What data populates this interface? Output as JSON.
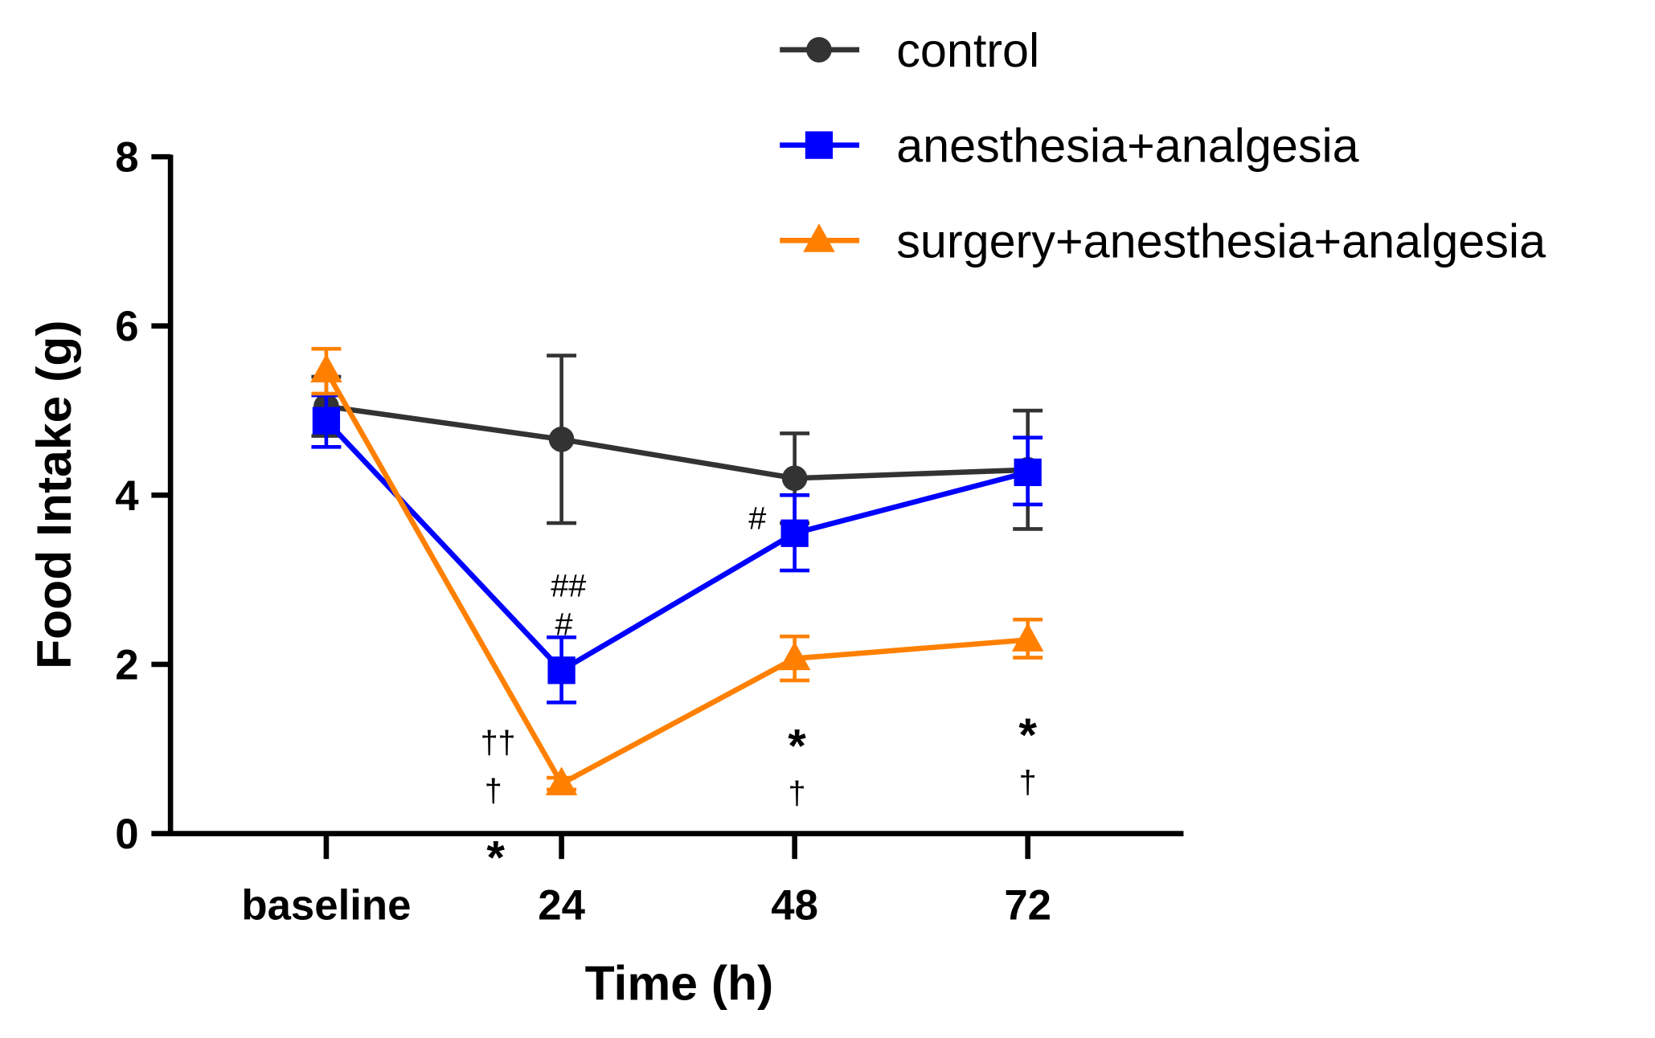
{
  "chart_data": {
    "type": "line",
    "title": "",
    "xlabel": "Time (h)",
    "ylabel": "Food Intake (g)",
    "categories": [
      "baseline",
      "24",
      "48",
      "72"
    ],
    "ylim": [
      0,
      8
    ],
    "yticks": [
      "0",
      "2",
      "4",
      "6",
      "8"
    ],
    "grid": false,
    "legend_position": "top-right",
    "series": [
      {
        "name": "control",
        "color": "#333333",
        "marker": "circle",
        "values": [
          5.05,
          4.66,
          4.2,
          4.3
        ],
        "err_upper": [
          5.4,
          5.65,
          4.73,
          5.0
        ],
        "err_lower": [
          4.7,
          3.67,
          3.67,
          3.6
        ]
      },
      {
        "name": "anesthesia+analgesia",
        "color": "#0000ff",
        "marker": "square",
        "values": [
          4.88,
          1.93,
          3.55,
          4.27
        ],
        "err_upper": [
          5.18,
          2.32,
          4.0,
          4.68
        ],
        "err_lower": [
          4.57,
          1.55,
          3.11,
          3.89
        ]
      },
      {
        "name": "surgery+anesthesia+analgesia",
        "color": "#ff8000",
        "marker": "triangle",
        "values": [
          5.47,
          0.59,
          2.07,
          2.29
        ],
        "err_upper": [
          5.73,
          0.66,
          2.33,
          2.53
        ],
        "err_lower": [
          5.2,
          0.52,
          1.81,
          2.08
        ]
      }
    ],
    "annotations": [
      {
        "text": "##",
        "x": 1.03,
        "y": 2.95,
        "style": "small"
      },
      {
        "text": "#",
        "x": 1.01,
        "y": 2.55,
        "style": "small"
      },
      {
        "text": "#",
        "x": 1.84,
        "y": 3.75,
        "style": "small"
      },
      {
        "text": "††",
        "x": 0.73,
        "y": 1.1,
        "style": "small"
      },
      {
        "text": "†",
        "x": 0.71,
        "y": 0.53,
        "style": "small"
      },
      {
        "text": "*",
        "x": 0.72,
        "y": -0.1,
        "style": "bold"
      },
      {
        "text": "*",
        "x": 2.01,
        "y": 1.22,
        "style": "bold"
      },
      {
        "text": "†",
        "x": 2.01,
        "y": 0.85,
        "style": "small"
      },
      {
        "text": "*",
        "x": 3.0,
        "y": 1.35,
        "style": "bold"
      },
      {
        "text": "†",
        "x": 3.0,
        "y": 0.98,
        "style": "small"
      }
    ]
  }
}
